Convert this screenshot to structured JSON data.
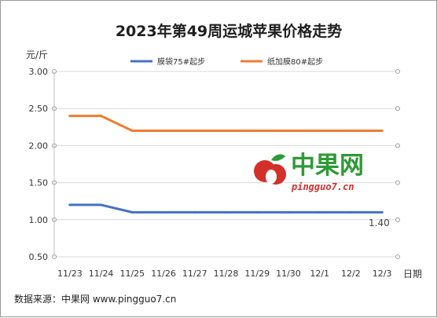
{
  "chart_data": {
    "type": "line",
    "title": "2023年第49周运城苹果价格走势",
    "ylabel": "元/斤",
    "xlabel": "日期",
    "categories": [
      "11/23",
      "11/24",
      "11/25",
      "11/26",
      "11/27",
      "11/28",
      "11/29",
      "11/30",
      "12/1",
      "12/2",
      "12/3"
    ],
    "ylim": [
      0.5,
      3.0
    ],
    "yticks": [
      "0.50",
      "1.00",
      "1.50",
      "2.00",
      "2.50",
      "3.00"
    ],
    "grid": "horizontal",
    "legend_position": "top",
    "series": [
      {
        "name": "膜袋75#起步",
        "color": "#4472c4",
        "values": [
          1.2,
          1.2,
          1.1,
          1.1,
          1.1,
          1.1,
          1.1,
          1.1,
          1.1,
          1.1,
          1.1
        ]
      },
      {
        "name": "纸加膜80#起步",
        "color": "#ed7d31",
        "values": [
          2.4,
          2.4,
          2.2,
          2.2,
          2.2,
          2.2,
          2.2,
          2.2,
          2.2,
          2.2,
          2.2
        ]
      }
    ],
    "annotations": [
      {
        "text": "1.40"
      }
    ]
  },
  "watermark": {
    "name": "中果网",
    "site": "pingguo7.cn",
    "leaf_color": "#2e9a36",
    "apple_color": "#d3302a"
  },
  "source": "数据来源：中果网 www.pingguo7.cn"
}
